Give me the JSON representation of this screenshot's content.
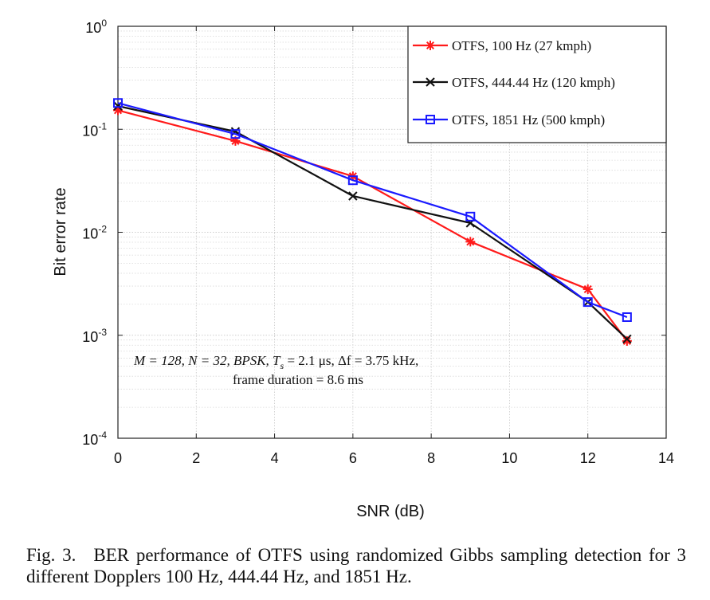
{
  "chart_data": {
    "type": "line",
    "title": "",
    "xlabel": "SNR (dB)",
    "ylabel": "Bit error rate",
    "xlim": [
      0,
      14
    ],
    "ylim": [
      0.0001,
      1
    ],
    "yscale": "log",
    "grid": true,
    "legend_position": "top-right",
    "x_ticks": [
      "0",
      "2",
      "4",
      "6",
      "8",
      "10",
      "12",
      "14"
    ],
    "y_ticks": [
      {
        "base": "10",
        "exp": "0"
      },
      {
        "base": "10",
        "exp": "-1"
      },
      {
        "base": "10",
        "exp": "-2"
      },
      {
        "base": "10",
        "exp": "-3"
      },
      {
        "base": "10",
        "exp": "-4"
      }
    ],
    "series": [
      {
        "name": "OTFS, 100 Hz (27 kmph)",
        "color": "#ff1a1a",
        "marker": "star",
        "x": [
          0,
          3,
          6,
          9,
          12,
          13
        ],
        "y": [
          0.153,
          0.077,
          0.035,
          0.0081,
          0.0028,
          0.00088
        ]
      },
      {
        "name": "OTFS, 444.44 Hz (120 kmph)",
        "color": "#111111",
        "marker": "x",
        "x": [
          0,
          3,
          6,
          9,
          12,
          13
        ],
        "y": [
          0.168,
          0.095,
          0.0225,
          0.0123,
          0.0021,
          0.00092
        ]
      },
      {
        "name": "OTFS, 1851 Hz (500 kmph)",
        "color": "#1a1aff",
        "marker": "square",
        "x": [
          0,
          3,
          6,
          9,
          12,
          13
        ],
        "y": [
          0.18,
          0.09,
          0.032,
          0.0142,
          0.0021,
          0.0015
        ]
      }
    ],
    "annotations": [
      "M = 128,  N = 32, BPSK, T",
      "s",
      " = 2.1 μs, Δf = 3.75 kHz,",
      "frame duration = 8.6 ms"
    ]
  },
  "caption": {
    "label": "Fig. 3.",
    "text": "BER performance of OTFS using randomized Gibbs sampling detection for 3 different Dopplers 100 Hz, 444.44 Hz, and 1851 Hz."
  }
}
